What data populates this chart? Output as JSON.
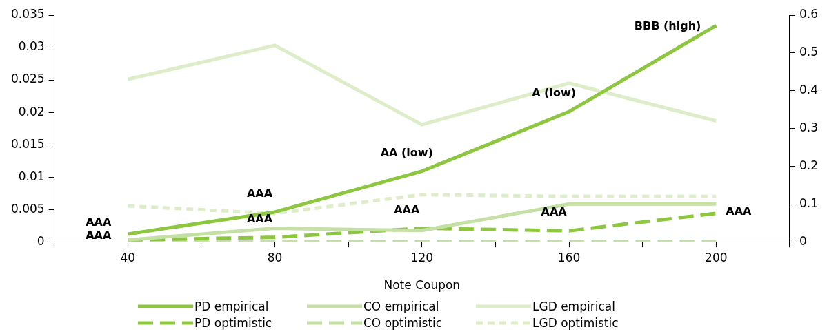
{
  "chart_data": {
    "type": "line",
    "xlabel": "Note Coupon",
    "x": [
      40,
      80,
      120,
      160,
      200
    ],
    "xlim": [
      20,
      220
    ],
    "xticks": [
      {
        "value": 20,
        "label": null
      },
      40,
      {
        "value": 60,
        "label": null
      },
      80,
      {
        "value": 100,
        "label": null
      },
      120,
      {
        "value": 140,
        "label": null
      },
      160,
      {
        "value": 180,
        "label": null
      },
      200,
      {
        "value": 220,
        "label": null
      }
    ],
    "ylim": [
      0,
      0.035
    ],
    "yticks": [
      0,
      0.005,
      0.01,
      0.015,
      0.02,
      0.025,
      0.03,
      0.035
    ],
    "y2lim": [
      0,
      0.6
    ],
    "y2ticks": [
      0,
      0.1,
      0.2,
      0.3,
      0.4,
      0.5,
      0.6
    ],
    "grid": false,
    "legend": "bottom",
    "marker": "none",
    "series": [
      {
        "name": "PD empirical",
        "color": "#8dc63f",
        "line_style": "solid",
        "values": [
          0.0012,
          0.0046,
          0.0109,
          0.0201,
          0.0334
        ]
      },
      {
        "name": "CO empirical",
        "color": "#c5e0a5",
        "line_style": "solid",
        "axis": "y2",
        "values": [
          0.005,
          0.036,
          0.03,
          0.1,
          0.1
        ]
      },
      {
        "name": "LGD empirical",
        "color": "#dcedc8",
        "line_style": "solid",
        "axis": "y2",
        "values": [
          0.43,
          0.52,
          0.31,
          0.42,
          0.32
        ]
      },
      {
        "name": "PD optimistic",
        "color": "#8dc63f",
        "line_style": "dashed",
        "values": [
          0.0003,
          0.0007,
          0.0021,
          0.0017,
          0.0044
        ]
      },
      {
        "name": "CO optimistic",
        "color": "#c5e0a5",
        "line_style": "dashed",
        "axis": "y2",
        "values": [
          0,
          0,
          0,
          0,
          0
        ]
      },
      {
        "name": "LGD optimistic",
        "color": "#dcedc8",
        "line_style": "dotted",
        "axis": "y2",
        "values": [
          0.095,
          0.075,
          0.125,
          0.12,
          0.12
        ]
      }
    ],
    "annotations": [
      {
        "text": "AAA",
        "x": 40,
        "y": 0.0012
      },
      {
        "text": "AAA",
        "x": 40,
        "y": 0.0003
      },
      {
        "text": "AAA",
        "x": 80,
        "y": 0.0046
      },
      {
        "text": "AAA",
        "x": 80,
        "y": 0.0007
      },
      {
        "text": "AA (low)",
        "x": 120,
        "y": 0.0109
      },
      {
        "text": "AAA",
        "x": 120,
        "y": 0.0021
      },
      {
        "text": "A (low)",
        "x": 160,
        "y": 0.0201
      },
      {
        "text": "AAA",
        "x": 160,
        "y": 0.0017
      },
      {
        "text": "BBB (high)",
        "x": 200,
        "y": 0.0334
      },
      {
        "text": "AAA",
        "x": 200,
        "y": 0.0044
      }
    ]
  }
}
